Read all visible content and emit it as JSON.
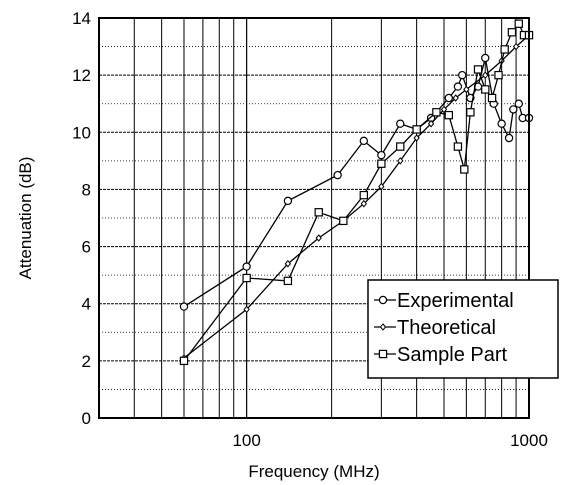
{
  "chart_data": {
    "type": "line",
    "title": "",
    "xlabel": "Frequency (MHz)",
    "ylabel": "Attenuation (dB)",
    "xscale": "log",
    "xlim": [
      30,
      1000
    ],
    "ylim": [
      0,
      14
    ],
    "x_ticks": [
      100,
      1000
    ],
    "x_tick_labels": [
      "100",
      "1000"
    ],
    "y_ticks": [
      0,
      2,
      4,
      6,
      8,
      10,
      12,
      14
    ],
    "y_tick_labels": [
      "0",
      "2",
      "4",
      "6",
      "8",
      "10",
      "12",
      "14"
    ],
    "grid": true,
    "legend_position": "bottom-right",
    "series": [
      {
        "name": "Experimental",
        "marker": "circle",
        "points": [
          [
            60,
            3.9
          ],
          [
            100,
            5.3
          ],
          [
            140,
            7.6
          ],
          [
            210,
            8.5
          ],
          [
            260,
            9.7
          ],
          [
            300,
            9.2
          ],
          [
            350,
            10.3
          ],
          [
            400,
            10.1
          ],
          [
            450,
            10.5
          ],
          [
            520,
            11.2
          ],
          [
            560,
            11.6
          ],
          [
            580,
            12.0
          ],
          [
            620,
            11.2
          ],
          [
            660,
            11.6
          ],
          [
            700,
            12.6
          ],
          [
            750,
            11.0
          ],
          [
            800,
            10.3
          ],
          [
            850,
            9.8
          ],
          [
            880,
            10.8
          ],
          [
            920,
            11.0
          ],
          [
            950,
            10.5
          ],
          [
            1000,
            10.5
          ]
        ]
      },
      {
        "name": "Theoretical",
        "marker": "diamond",
        "points": [
          [
            60,
            2.1
          ],
          [
            100,
            3.8
          ],
          [
            140,
            5.4
          ],
          [
            180,
            6.3
          ],
          [
            220,
            6.9
          ],
          [
            260,
            7.5
          ],
          [
            300,
            8.1
          ],
          [
            350,
            9.0
          ],
          [
            400,
            9.8
          ],
          [
            450,
            10.3
          ],
          [
            500,
            10.8
          ],
          [
            550,
            11.2
          ],
          [
            600,
            11.5
          ],
          [
            700,
            12.0
          ],
          [
            800,
            12.5
          ],
          [
            900,
            13.0
          ],
          [
            1000,
            13.4
          ]
        ]
      },
      {
        "name": "Sample Part",
        "marker": "square",
        "points": [
          [
            60,
            2.0
          ],
          [
            100,
            4.9
          ],
          [
            140,
            4.8
          ],
          [
            180,
            7.2
          ],
          [
            220,
            6.9
          ],
          [
            260,
            7.8
          ],
          [
            300,
            8.9
          ],
          [
            350,
            9.5
          ],
          [
            400,
            10.1
          ],
          [
            470,
            10.7
          ],
          [
            520,
            10.6
          ],
          [
            560,
            9.5
          ],
          [
            590,
            8.7
          ],
          [
            620,
            10.7
          ],
          [
            660,
            12.2
          ],
          [
            700,
            11.5
          ],
          [
            740,
            11.2
          ],
          [
            780,
            12.0
          ],
          [
            820,
            12.9
          ],
          [
            870,
            13.5
          ],
          [
            920,
            13.8
          ],
          [
            960,
            13.4
          ],
          [
            1000,
            13.4
          ]
        ]
      }
    ]
  }
}
